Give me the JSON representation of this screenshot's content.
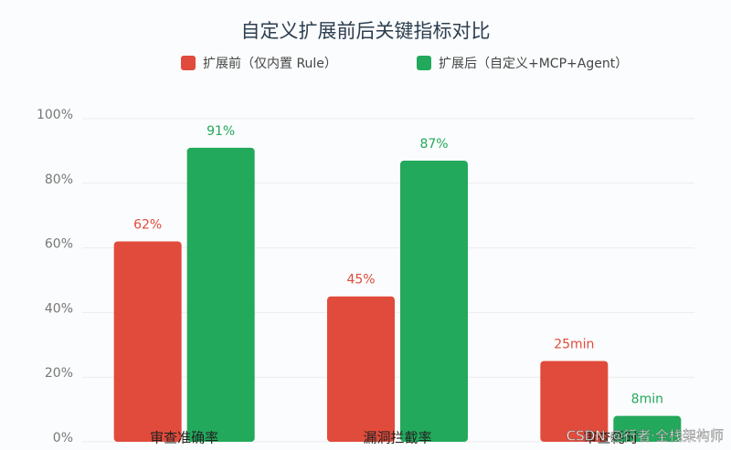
{
  "chart_data": {
    "type": "bar",
    "title": "自定义扩展前后关键指标对比",
    "categories": [
      "审查准确率",
      "漏洞拦截率",
      "审查耗时"
    ],
    "series": [
      {
        "name": "扩展前（仅内置 Rule）",
        "color": "#e14b3b",
        "values": [
          62,
          45,
          25
        ],
        "value_labels": [
          "62%",
          "45%",
          "25min"
        ]
      },
      {
        "name": "扩展后（自定义+MCP+Agent）",
        "color": "#22a95b",
        "values": [
          91,
          87,
          8
        ],
        "value_labels": [
          "91%",
          "87%",
          "8min"
        ]
      }
    ],
    "ylim": [
      0,
      100
    ],
    "yticks": [
      {
        "value": 0,
        "label": "0%"
      },
      {
        "value": 20,
        "label": "20%"
      },
      {
        "value": 40,
        "label": "40%"
      },
      {
        "value": 60,
        "label": "60%"
      },
      {
        "value": 80,
        "label": "80%"
      },
      {
        "value": 100,
        "label": "100%"
      }
    ],
    "grid": true,
    "legend": "top",
    "watermark": "CSDN @行者·全栈架构师"
  }
}
